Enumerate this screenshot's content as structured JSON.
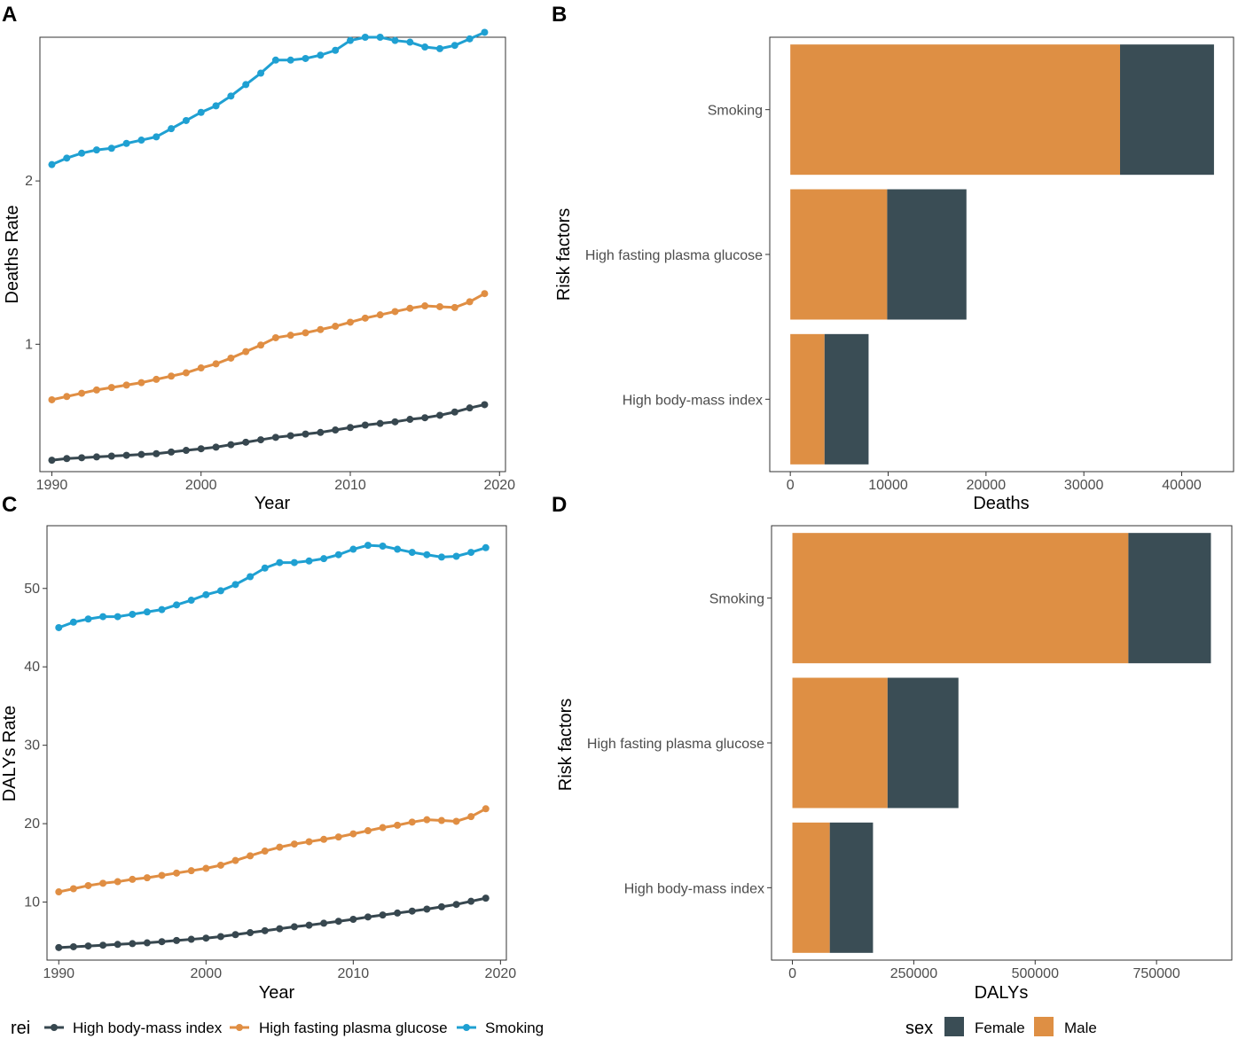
{
  "colors": {
    "smoking": "#1fa0d2",
    "glucose": "#e08e43",
    "bmi": "#37474f",
    "female": "#3a4d55",
    "male": "#de8f44"
  },
  "chart_data": [
    {
      "panel": "A",
      "type": "line",
      "xlabel": "Year",
      "ylabel": "Deaths Rate",
      "xlim": [
        1989.2,
        2020.4
      ],
      "ylim": [
        0.22,
        2.88
      ],
      "x_ticks": [
        1990,
        2000,
        2010,
        2020
      ],
      "y_ticks": [
        1,
        2
      ],
      "x": [
        1990,
        1991,
        1992,
        1993,
        1994,
        1995,
        1996,
        1997,
        1998,
        1999,
        2000,
        2001,
        2002,
        2003,
        2004,
        2005,
        2006,
        2007,
        2008,
        2009,
        2010,
        2011,
        2012,
        2013,
        2014,
        2015,
        2016,
        2017,
        2018,
        2019
      ],
      "series": [
        {
          "name": "High body-mass index",
          "color_key": "bmi",
          "values": [
            0.29,
            0.3,
            0.305,
            0.31,
            0.315,
            0.32,
            0.325,
            0.33,
            0.34,
            0.35,
            0.36,
            0.37,
            0.385,
            0.4,
            0.415,
            0.43,
            0.44,
            0.45,
            0.46,
            0.475,
            0.49,
            0.505,
            0.515,
            0.525,
            0.54,
            0.55,
            0.565,
            0.585,
            0.61,
            0.63
          ]
        },
        {
          "name": "High fasting plasma glucose",
          "color_key": "glucose",
          "values": [
            0.66,
            0.68,
            0.7,
            0.72,
            0.735,
            0.75,
            0.765,
            0.785,
            0.805,
            0.825,
            0.855,
            0.88,
            0.915,
            0.955,
            0.995,
            1.04,
            1.055,
            1.07,
            1.09,
            1.11,
            1.135,
            1.16,
            1.18,
            1.2,
            1.22,
            1.235,
            1.23,
            1.225,
            1.26,
            1.31
          ]
        },
        {
          "name": "Smoking",
          "color_key": "smoking",
          "values": [
            2.1,
            2.14,
            2.17,
            2.19,
            2.2,
            2.23,
            2.25,
            2.27,
            2.32,
            2.37,
            2.42,
            2.46,
            2.52,
            2.59,
            2.66,
            2.74,
            2.74,
            2.75,
            2.77,
            2.8,
            2.86,
            2.88,
            2.88,
            2.86,
            2.85,
            2.82,
            2.81,
            2.83,
            2.87,
            2.91
          ]
        }
      ]
    },
    {
      "panel": "B",
      "type": "bar",
      "orientation": "horizontal",
      "stacked": true,
      "xlabel": "Deaths",
      "ylabel": "Risk factors",
      "xlim": [
        -2100,
        45300
      ],
      "x_ticks": [
        0,
        10000,
        20000,
        30000,
        40000
      ],
      "categories": [
        "Smoking",
        "High fasting plasma glucose",
        "High body-mass index"
      ],
      "series": [
        {
          "name": "Male",
          "color_key": "male",
          "values": [
            33700,
            9900,
            3500
          ]
        },
        {
          "name": "Female",
          "color_key": "female",
          "values": [
            9600,
            8100,
            4500
          ]
        }
      ]
    },
    {
      "panel": "C",
      "type": "line",
      "xlabel": "Year",
      "ylabel": "DALYs Rate",
      "xlim": [
        1989.2,
        2020.4
      ],
      "ylim": [
        2.6,
        58.0
      ],
      "x_ticks": [
        1990,
        2000,
        2010,
        2020
      ],
      "y_ticks": [
        10,
        20,
        30,
        40,
        50
      ],
      "x": [
        1990,
        1991,
        1992,
        1993,
        1994,
        1995,
        1996,
        1997,
        1998,
        1999,
        2000,
        2001,
        2002,
        2003,
        2004,
        2005,
        2006,
        2007,
        2008,
        2009,
        2010,
        2011,
        2012,
        2013,
        2014,
        2015,
        2016,
        2017,
        2018,
        2019
      ],
      "series": [
        {
          "name": "High body-mass index",
          "color_key": "bmi",
          "values": [
            4.2,
            4.3,
            4.4,
            4.5,
            4.6,
            4.7,
            4.8,
            4.95,
            5.1,
            5.25,
            5.4,
            5.6,
            5.85,
            6.1,
            6.35,
            6.6,
            6.85,
            7.05,
            7.3,
            7.55,
            7.8,
            8.1,
            8.35,
            8.6,
            8.85,
            9.1,
            9.4,
            9.7,
            10.1,
            10.5
          ]
        },
        {
          "name": "High fasting plasma glucose",
          "color_key": "glucose",
          "values": [
            11.3,
            11.7,
            12.1,
            12.4,
            12.6,
            12.9,
            13.1,
            13.4,
            13.7,
            14.0,
            14.3,
            14.7,
            15.3,
            15.9,
            16.5,
            17.0,
            17.4,
            17.7,
            18.0,
            18.3,
            18.7,
            19.1,
            19.5,
            19.8,
            20.2,
            20.5,
            20.4,
            20.3,
            20.9,
            21.9
          ]
        },
        {
          "name": "Smoking",
          "color_key": "smoking",
          "values": [
            45.0,
            45.7,
            46.1,
            46.4,
            46.4,
            46.7,
            47.0,
            47.3,
            47.9,
            48.5,
            49.2,
            49.7,
            50.5,
            51.5,
            52.6,
            53.3,
            53.3,
            53.5,
            53.8,
            54.3,
            55.0,
            55.5,
            55.4,
            55.0,
            54.6,
            54.3,
            54.0,
            54.1,
            54.6,
            55.2
          ]
        }
      ]
    },
    {
      "panel": "D",
      "type": "bar",
      "orientation": "horizontal",
      "stacked": true,
      "xlabel": "DALYs",
      "ylabel": "Risk factors",
      "xlim": [
        -43000,
        905000
      ],
      "x_ticks": [
        0,
        250000,
        500000,
        750000
      ],
      "categories": [
        "Smoking",
        "High fasting plasma glucose",
        "High body-mass index"
      ],
      "series": [
        {
          "name": "Male",
          "color_key": "male",
          "values": [
            692000,
            196000,
            77000
          ]
        },
        {
          "name": "Female",
          "color_key": "female",
          "values": [
            170000,
            146000,
            89000
          ]
        }
      ]
    }
  ],
  "legends": {
    "lines": {
      "title": "rei",
      "items": [
        {
          "label": "High body-mass index",
          "color_key": "bmi"
        },
        {
          "label": "High fasting plasma glucose",
          "color_key": "glucose"
        },
        {
          "label": "Smoking",
          "color_key": "smoking"
        }
      ]
    },
    "bars": {
      "title": "sex",
      "items": [
        {
          "label": "Female",
          "color_key": "female"
        },
        {
          "label": "Male",
          "color_key": "male"
        }
      ]
    }
  }
}
